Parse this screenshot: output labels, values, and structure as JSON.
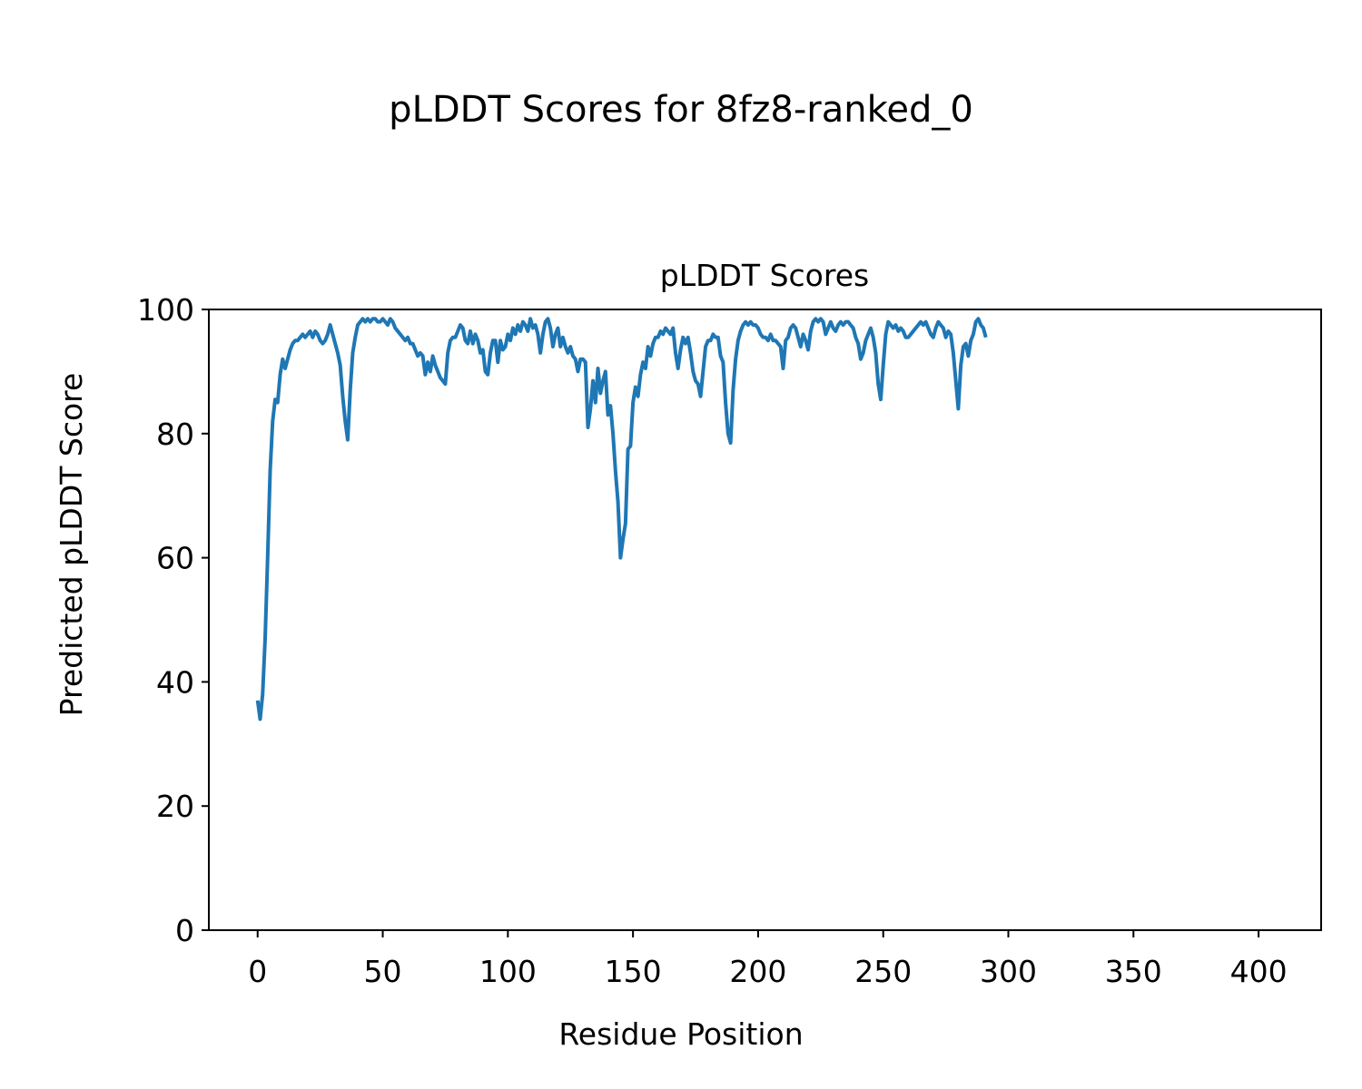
{
  "figure": {
    "title": "pLDDT Scores for 8fz8-ranked_0"
  },
  "chart_data": {
    "type": "line",
    "title": "pLDDT Scores",
    "xlabel": "Residue Position",
    "ylabel": "Predicted pLDDT Score",
    "xlim": [
      -19.5,
      425
    ],
    "ylim": [
      0,
      100
    ],
    "xticks": [
      0,
      50,
      100,
      150,
      200,
      250,
      300,
      350,
      400
    ],
    "yticks": [
      0,
      20,
      40,
      60,
      80,
      100
    ],
    "grid": false,
    "legend": "none",
    "series": [
      {
        "color": "#1f77b4",
        "points": [
          [
            0,
            37
          ],
          [
            1,
            34
          ],
          [
            2,
            38
          ],
          [
            3,
            47
          ],
          [
            4,
            60
          ],
          [
            5,
            74
          ],
          [
            6,
            82
          ],
          [
            7,
            85.5
          ],
          [
            8,
            85
          ],
          [
            9,
            89.5
          ],
          [
            10,
            92
          ],
          [
            11,
            90.5
          ],
          [
            12,
            92
          ],
          [
            13,
            93.5
          ],
          [
            14,
            94.5
          ],
          [
            15,
            95
          ],
          [
            16,
            95
          ],
          [
            17,
            95.5
          ],
          [
            18,
            96
          ],
          [
            19,
            95.5
          ],
          [
            20,
            96
          ],
          [
            21,
            96.5
          ],
          [
            22,
            95.5
          ],
          [
            23,
            96.5
          ],
          [
            24,
            96
          ],
          [
            25,
            95
          ],
          [
            26,
            94.5
          ],
          [
            27,
            95
          ],
          [
            28,
            96
          ],
          [
            29,
            97.5
          ],
          [
            30,
            96
          ],
          [
            31,
            94.5
          ],
          [
            32,
            93
          ],
          [
            33,
            91
          ],
          [
            34,
            86
          ],
          [
            35,
            82
          ],
          [
            36,
            79
          ],
          [
            37,
            87
          ],
          [
            38,
            93
          ],
          [
            39,
            95.5
          ],
          [
            40,
            97.5
          ],
          [
            41,
            98
          ],
          [
            42,
            98.5
          ],
          [
            43,
            98
          ],
          [
            44,
            98.5
          ],
          [
            45,
            98
          ],
          [
            46,
            98.5
          ],
          [
            47,
            98.5
          ],
          [
            48,
            98
          ],
          [
            49,
            98
          ],
          [
            50,
            98.5
          ],
          [
            51,
            98
          ],
          [
            52,
            97.5
          ],
          [
            53,
            98.5
          ],
          [
            54,
            98
          ],
          [
            55,
            97
          ],
          [
            56,
            96.5
          ],
          [
            57,
            96
          ],
          [
            58,
            95.5
          ],
          [
            59,
            95
          ],
          [
            60,
            95.5
          ],
          [
            61,
            94.5
          ],
          [
            62,
            94.5
          ],
          [
            63,
            93.5
          ],
          [
            64,
            92.5
          ],
          [
            65,
            93
          ],
          [
            66,
            92.5
          ],
          [
            67,
            89.5
          ],
          [
            68,
            91.5
          ],
          [
            69,
            90
          ],
          [
            70,
            92.5
          ],
          [
            71,
            91
          ],
          [
            72,
            90
          ],
          [
            73,
            89
          ],
          [
            74,
            88.5
          ],
          [
            75,
            88
          ],
          [
            76,
            93
          ],
          [
            77,
            95
          ],
          [
            78,
            95.5
          ],
          [
            79,
            95.5
          ],
          [
            80,
            96.5
          ],
          [
            81,
            97.5
          ],
          [
            82,
            97
          ],
          [
            83,
            95
          ],
          [
            84,
            94.5
          ],
          [
            85,
            96.5
          ],
          [
            86,
            94.5
          ],
          [
            87,
            96
          ],
          [
            88,
            95
          ],
          [
            89,
            93
          ],
          [
            90,
            93.5
          ],
          [
            91,
            90
          ],
          [
            92,
            89.5
          ],
          [
            93,
            93
          ],
          [
            94,
            95
          ],
          [
            95,
            95
          ],
          [
            96,
            91.5
          ],
          [
            97,
            95
          ],
          [
            98,
            93.5
          ],
          [
            99,
            94
          ],
          [
            100,
            96
          ],
          [
            101,
            95
          ],
          [
            102,
            97
          ],
          [
            103,
            96
          ],
          [
            104,
            97.5
          ],
          [
            105,
            96.5
          ],
          [
            106,
            98
          ],
          [
            107,
            97.5
          ],
          [
            108,
            96.5
          ],
          [
            109,
            98.5
          ],
          [
            110,
            97
          ],
          [
            111,
            97.5
          ],
          [
            112,
            96
          ],
          [
            113,
            93
          ],
          [
            114,
            96
          ],
          [
            115,
            98
          ],
          [
            116,
            98.5
          ],
          [
            117,
            97
          ],
          [
            118,
            94
          ],
          [
            119,
            96
          ],
          [
            120,
            97
          ],
          [
            121,
            94
          ],
          [
            122,
            95.5
          ],
          [
            123,
            94
          ],
          [
            124,
            93
          ],
          [
            125,
            94
          ],
          [
            126,
            92.5
          ],
          [
            127,
            92
          ],
          [
            128,
            90
          ],
          [
            129,
            92
          ],
          [
            130,
            92
          ],
          [
            131,
            91.5
          ],
          [
            132,
            81
          ],
          [
            133,
            84
          ],
          [
            134,
            88.5
          ],
          [
            135,
            85
          ],
          [
            136,
            90.5
          ],
          [
            137,
            86.5
          ],
          [
            138,
            88.5
          ],
          [
            139,
            90
          ],
          [
            140,
            83
          ],
          [
            141,
            84.5
          ],
          [
            142,
            80
          ],
          [
            143,
            74
          ],
          [
            144,
            69
          ],
          [
            145,
            60
          ],
          [
            146,
            63
          ],
          [
            147,
            65.5
          ],
          [
            148,
            77.5
          ],
          [
            149,
            78
          ],
          [
            150,
            85
          ],
          [
            151,
            87.5
          ],
          [
            152,
            86
          ],
          [
            153,
            89.5
          ],
          [
            154,
            91.5
          ],
          [
            155,
            90.5
          ],
          [
            156,
            94
          ],
          [
            157,
            92.5
          ],
          [
            158,
            94.5
          ],
          [
            159,
            95.5
          ],
          [
            160,
            95.5
          ],
          [
            161,
            96.5
          ],
          [
            162,
            96
          ],
          [
            163,
            97
          ],
          [
            164,
            96.5
          ],
          [
            165,
            96
          ],
          [
            166,
            97
          ],
          [
            167,
            93
          ],
          [
            168,
            90.5
          ],
          [
            169,
            93.5
          ],
          [
            170,
            95.5
          ],
          [
            171,
            94.5
          ],
          [
            172,
            95.5
          ],
          [
            173,
            93
          ],
          [
            174,
            90
          ],
          [
            175,
            88.5
          ],
          [
            176,
            88
          ],
          [
            177,
            86
          ],
          [
            178,
            90
          ],
          [
            179,
            94
          ],
          [
            180,
            95
          ],
          [
            181,
            95
          ],
          [
            182,
            96
          ],
          [
            183,
            95.5
          ],
          [
            184,
            95.5
          ],
          [
            185,
            92.5
          ],
          [
            186,
            91.5
          ],
          [
            187,
            85
          ],
          [
            188,
            80
          ],
          [
            189,
            78.5
          ],
          [
            190,
            87
          ],
          [
            191,
            92
          ],
          [
            192,
            95
          ],
          [
            193,
            96.5
          ],
          [
            194,
            97.5
          ],
          [
            195,
            98
          ],
          [
            196,
            97.5
          ],
          [
            197,
            98
          ],
          [
            198,
            97.5
          ],
          [
            199,
            97.5
          ],
          [
            200,
            97
          ],
          [
            201,
            96
          ],
          [
            202,
            95.5
          ],
          [
            203,
            95.5
          ],
          [
            204,
            95
          ],
          [
            205,
            96
          ],
          [
            206,
            95
          ],
          [
            207,
            95
          ],
          [
            208,
            94.5
          ],
          [
            209,
            94
          ],
          [
            210,
            90.5
          ],
          [
            211,
            95
          ],
          [
            212,
            95.5
          ],
          [
            213,
            97
          ],
          [
            214,
            97.5
          ],
          [
            215,
            97
          ],
          [
            216,
            95.5
          ],
          [
            217,
            94
          ],
          [
            218,
            96
          ],
          [
            219,
            95
          ],
          [
            220,
            93.5
          ],
          [
            221,
            96.5
          ],
          [
            222,
            98
          ],
          [
            223,
            98.5
          ],
          [
            224,
            98
          ],
          [
            225,
            98.5
          ],
          [
            226,
            98
          ],
          [
            227,
            96
          ],
          [
            228,
            97
          ],
          [
            229,
            98
          ],
          [
            230,
            97
          ],
          [
            231,
            96.5
          ],
          [
            232,
            97.5
          ],
          [
            233,
            98
          ],
          [
            234,
            97.5
          ],
          [
            235,
            98
          ],
          [
            236,
            98
          ],
          [
            237,
            97.5
          ],
          [
            238,
            97
          ],
          [
            239,
            95.5
          ],
          [
            240,
            94.5
          ],
          [
            241,
            92
          ],
          [
            242,
            93
          ],
          [
            243,
            95
          ],
          [
            244,
            96
          ],
          [
            245,
            97
          ],
          [
            246,
            95.5
          ],
          [
            247,
            93
          ],
          [
            248,
            88
          ],
          [
            249,
            85.5
          ],
          [
            250,
            91
          ],
          [
            251,
            96
          ],
          [
            252,
            98
          ],
          [
            253,
            97.5
          ],
          [
            254,
            97
          ],
          [
            255,
            97.5
          ],
          [
            256,
            96.5
          ],
          [
            257,
            97
          ],
          [
            258,
            96.5
          ],
          [
            259,
            95.5
          ],
          [
            260,
            95.5
          ],
          [
            261,
            96
          ],
          [
            262,
            96.5
          ],
          [
            263,
            97
          ],
          [
            264,
            97.5
          ],
          [
            265,
            98
          ],
          [
            266,
            97.5
          ],
          [
            267,
            98
          ],
          [
            268,
            97
          ],
          [
            269,
            96
          ],
          [
            270,
            95.5
          ],
          [
            271,
            97
          ],
          [
            272,
            98
          ],
          [
            273,
            97.5
          ],
          [
            274,
            97
          ],
          [
            275,
            95.5
          ],
          [
            276,
            96.5
          ],
          [
            277,
            96
          ],
          [
            278,
            93
          ],
          [
            279,
            88.5
          ],
          [
            280,
            84
          ],
          [
            281,
            91
          ],
          [
            282,
            94
          ],
          [
            283,
            94.5
          ],
          [
            284,
            92.5
          ],
          [
            285,
            95
          ],
          [
            286,
            96
          ],
          [
            287,
            98
          ],
          [
            288,
            98.5
          ],
          [
            289,
            97.5
          ],
          [
            290,
            97
          ],
          [
            291,
            95.5
          ]
        ]
      }
    ]
  }
}
